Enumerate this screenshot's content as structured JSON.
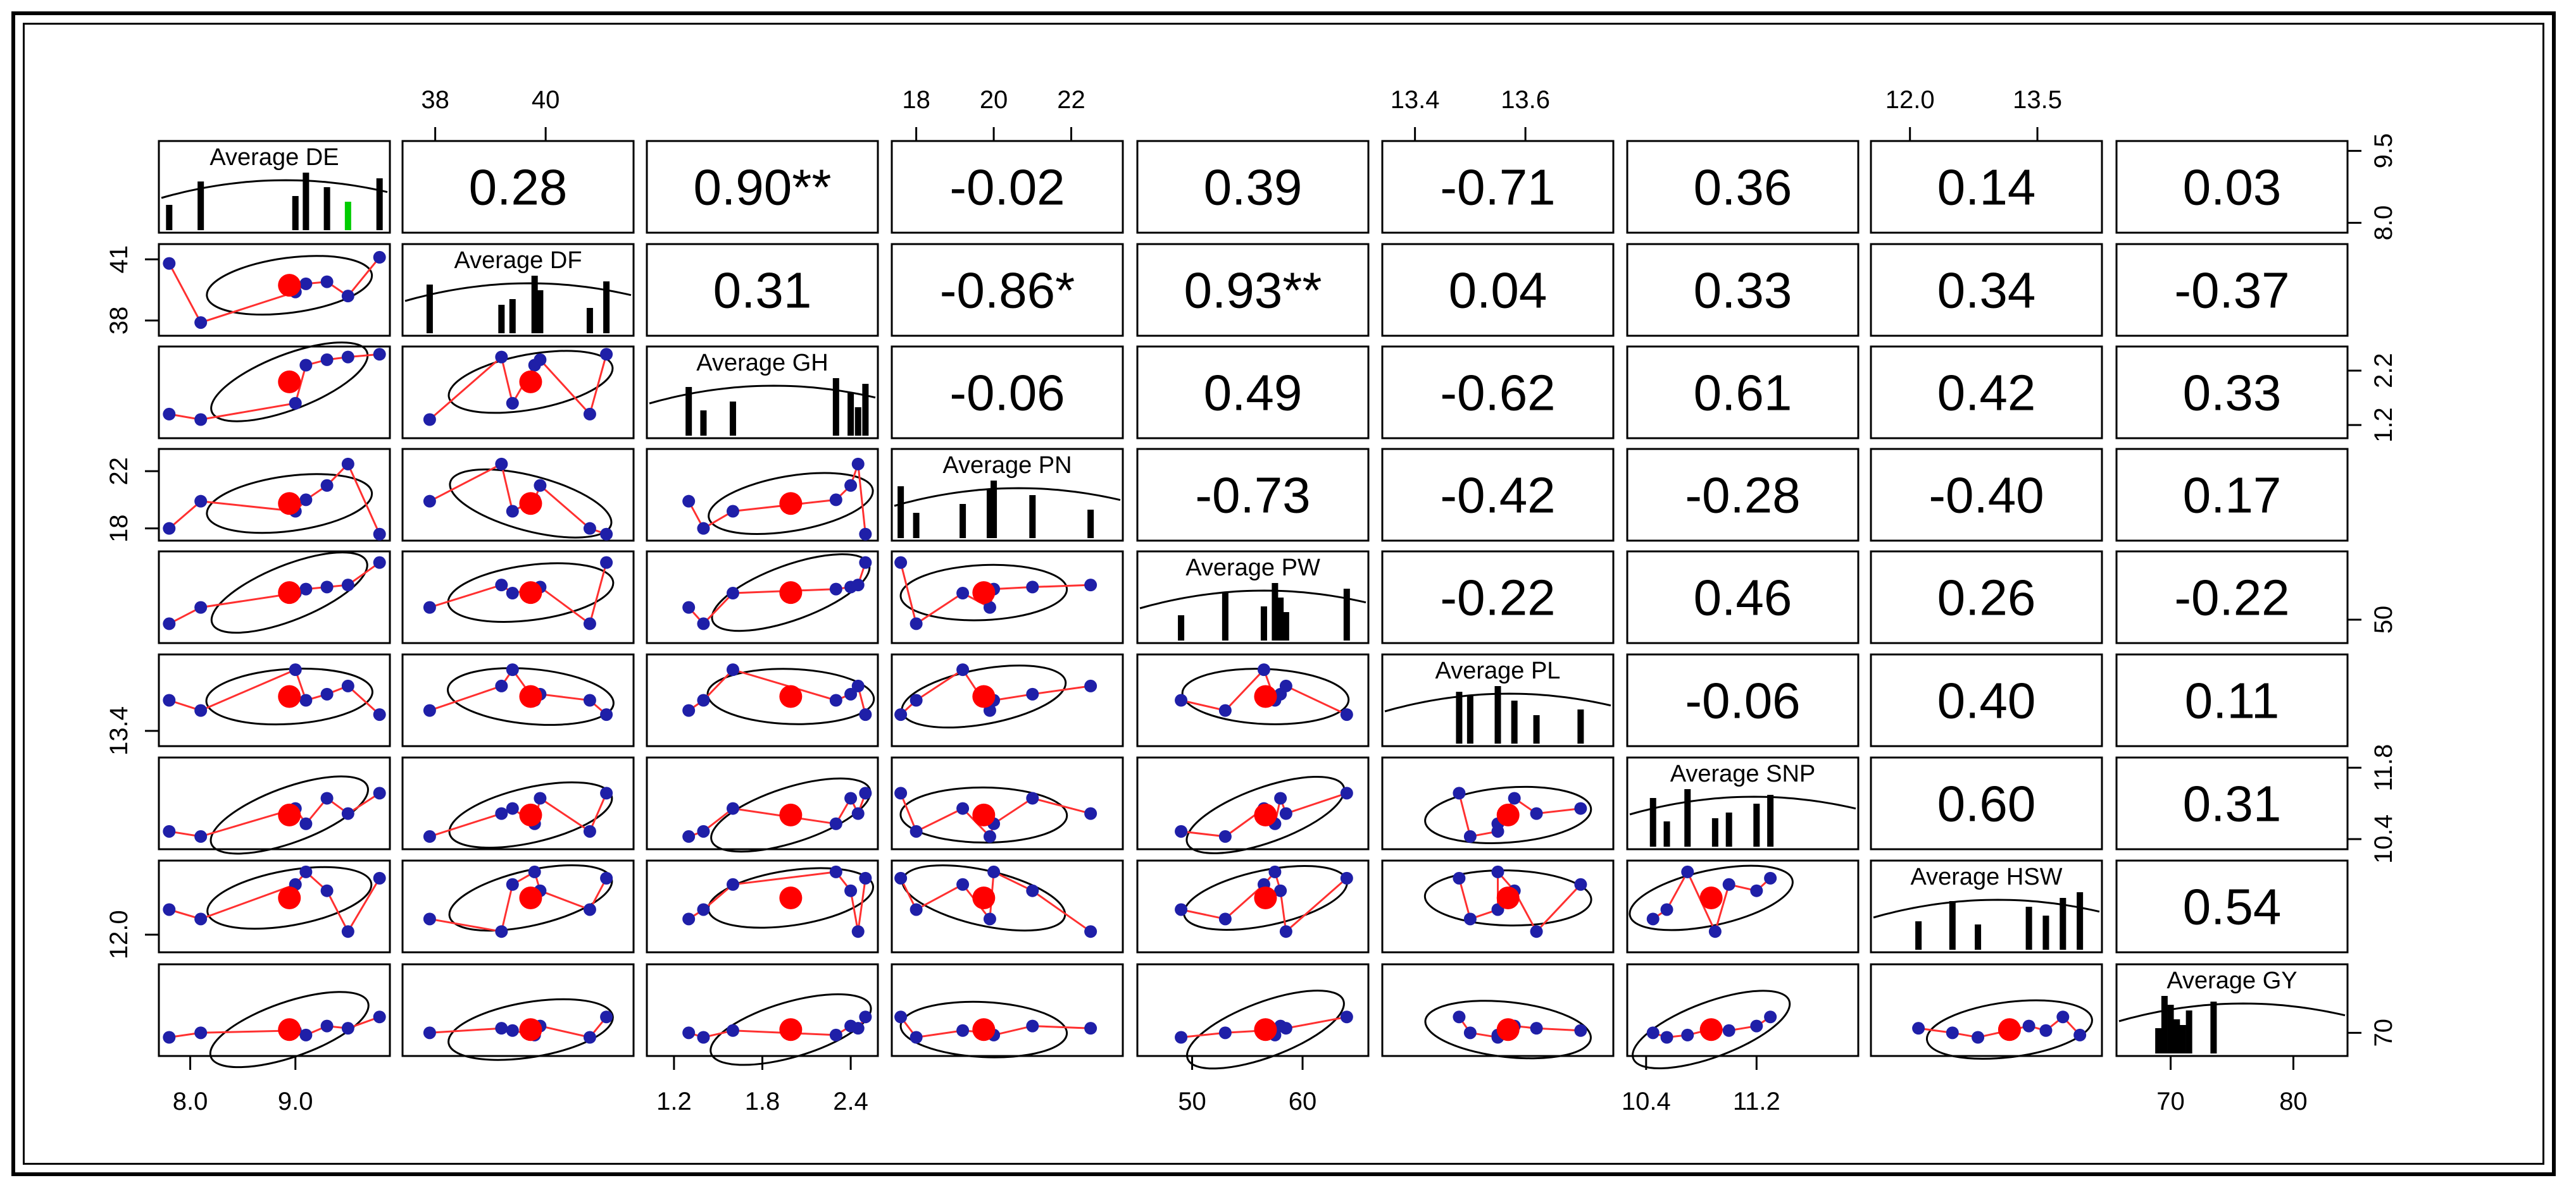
{
  "chart_data": {
    "type": "scatter-matrix",
    "variables": [
      "Average DE",
      "Average DF",
      "Average GH",
      "Average PN",
      "Average PW",
      "Average PL",
      "Average SNP",
      "Average HSW",
      "Average GY"
    ],
    "correlations": [
      [
        "",
        "0.28",
        "0.90**",
        "-0.02",
        "0.39",
        "-0.71",
        "0.36",
        "0.14",
        "0.03"
      ],
      [
        "",
        "",
        "0.31",
        "-0.86*",
        "0.93**",
        "0.04",
        "0.33",
        "0.34",
        "-0.37"
      ],
      [
        "",
        "",
        "",
        "-0.06",
        "0.49",
        "-0.62",
        "0.61",
        "0.42",
        "0.33"
      ],
      [
        "",
        "",
        "",
        "",
        "-0.73",
        "-0.42",
        "-0.28",
        "-0.40",
        "0.17"
      ],
      [
        "",
        "",
        "",
        "",
        "",
        "-0.22",
        "0.46",
        "0.26",
        "-0.22"
      ],
      [
        "",
        "",
        "",
        "",
        "",
        "",
        "-0.06",
        "0.40",
        "0.11"
      ],
      [
        "",
        "",
        "",
        "",
        "",
        "",
        "",
        "0.60",
        "0.31"
      ],
      [
        "",
        "",
        "",
        "",
        "",
        "",
        "",
        "",
        "0.54"
      ],
      [
        "",
        "",
        "",
        "",
        "",
        "",
        "",
        "",
        ""
      ]
    ],
    "axes": [
      {
        "range": [
          7.75,
          9.85
        ],
        "ticks": [
          "8.0",
          "9.0"
        ],
        "side": "bottom"
      },
      {
        "range": [
          37.5,
          41.5
        ],
        "ticks": [
          "38",
          "40"
        ],
        "side": "top",
        "left_ticks": [
          "38",
          "41"
        ]
      },
      {
        "range": [
          1.05,
          2.55
        ],
        "ticks": [
          "1.2",
          "1.8",
          "2.4"
        ],
        "side": "bottom",
        "right_ticks": [
          "1.2",
          "2.2"
        ]
      },
      {
        "range": [
          17.5,
          23.2
        ],
        "ticks": [
          "18",
          "20",
          "22"
        ],
        "side": "top",
        "left_ticks": [
          "18",
          "22"
        ]
      },
      {
        "range": [
          45.5,
          65.5
        ],
        "ticks": [
          "50",
          "60"
        ],
        "side": "bottom",
        "right_ticks": [
          "50"
        ]
      },
      {
        "range": [
          13.35,
          13.75
        ],
        "ticks": [
          "13.4",
          "13.6"
        ],
        "side": "top",
        "left_ticks": [
          "13.4"
        ]
      },
      {
        "range": [
          10.3,
          11.9
        ],
        "ticks": [
          "10.4",
          "11.2"
        ],
        "side": "bottom",
        "right_ticks": [
          "10.4",
          "11.8"
        ]
      },
      {
        "range": [
          11.6,
          14.2
        ],
        "ticks": [
          "12.0",
          "13.5"
        ],
        "side": "top",
        "left_ticks": [
          "12.0"
        ]
      },
      {
        "range": [
          66,
          84
        ],
        "ticks": [
          "70",
          "80"
        ],
        "side": "bottom",
        "right_ticks": [
          "70"
        ]
      }
    ],
    "top_right_axis_ticks": [
      "8.0",
      "9.5"
    ],
    "observations": [
      [
        7.8,
        40.8,
        1.4,
        18.0,
        49.0,
        13.55,
        10.55,
        12.8,
        69.0
      ],
      [
        8.1,
        37.9,
        1.3,
        19.9,
        53.0,
        13.5,
        10.45,
        12.5,
        70.0
      ],
      [
        9.0,
        39.4,
        1.6,
        19.2,
        56.5,
        13.7,
        11.0,
        13.6,
        70.5
      ],
      [
        9.1,
        39.8,
        2.3,
        20.0,
        57.5,
        13.55,
        10.7,
        14.0,
        69.5
      ],
      [
        9.3,
        39.9,
        2.4,
        21.0,
        58.0,
        13.58,
        11.2,
        13.4,
        71.5
      ],
      [
        9.5,
        39.2,
        2.45,
        22.5,
        58.5,
        13.62,
        10.9,
        12.1,
        71.0
      ],
      [
        9.8,
        41.1,
        2.5,
        17.6,
        64.0,
        13.48,
        11.3,
        13.8,
        73.5
      ]
    ]
  },
  "colors": {
    "point": "#1f1fa8",
    "centroid": "#ff0000",
    "smoother": "#ff3030",
    "ellipse": "#000000",
    "histogram": "#000000",
    "highlight_bar": "#00cc00"
  }
}
